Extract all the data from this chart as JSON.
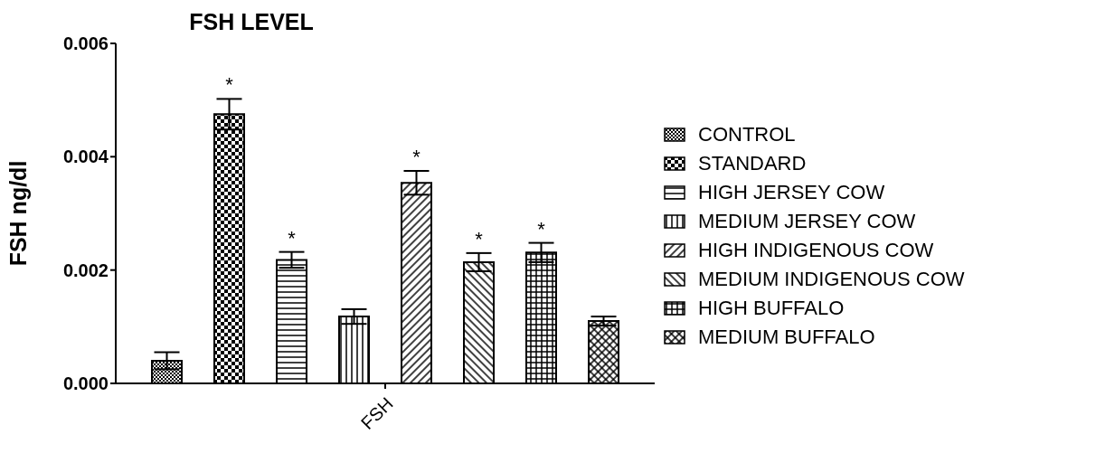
{
  "chart_data": {
    "type": "bar",
    "title": "FSH LEVEL",
    "ylabel": "FSH ng/dl",
    "categories": [
      "FSH"
    ],
    "series": [
      {
        "name": "CONTROL",
        "color": "#000000",
        "values": [
          0.0004
        ],
        "errors": [
          0.00015
        ]
      },
      {
        "name": "STANDARD",
        "color": "#000000",
        "values": [
          0.00475
        ],
        "errors": [
          0.00027
        ],
        "value_labels": [
          "*"
        ]
      },
      {
        "name": "HIGH JERSEY COW",
        "color": "#000000",
        "values": [
          0.00218
        ],
        "errors": [
          0.00014
        ],
        "value_labels": [
          "*"
        ]
      },
      {
        "name": "MEDIUM JERSEY COW",
        "color": "#000000",
        "values": [
          0.00118
        ],
        "errors": [
          0.00013
        ]
      },
      {
        "name": "HIGH INDIGENOUS COW",
        "color": "#000000",
        "values": [
          0.00354
        ],
        "errors": [
          0.00021
        ],
        "value_labels": [
          "*"
        ]
      },
      {
        "name": "MEDIUM INDIGENOUS COW",
        "color": "#000000",
        "values": [
          0.00214
        ],
        "errors": [
          0.00016
        ],
        "value_labels": [
          "*"
        ]
      },
      {
        "name": "HIGH BUFFALO",
        "color": "#000000",
        "values": [
          0.00231
        ],
        "errors": [
          0.00017
        ],
        "value_labels": [
          "*"
        ]
      },
      {
        "name": "MEDIUM BUFFALO",
        "color": "#000000",
        "values": [
          0.0011
        ],
        "errors": [
          8e-05
        ]
      }
    ],
    "ylim": [
      0,
      0.006
    ],
    "yticks": [
      {
        "value": 0,
        "label": "0.000"
      },
      {
        "value": 0.002,
        "label": "0.002"
      },
      {
        "value": 0.004,
        "label": "0.004"
      },
      {
        "value": 0.006,
        "label": "0.006"
      }
    ],
    "grid": false,
    "legend": "right"
  }
}
